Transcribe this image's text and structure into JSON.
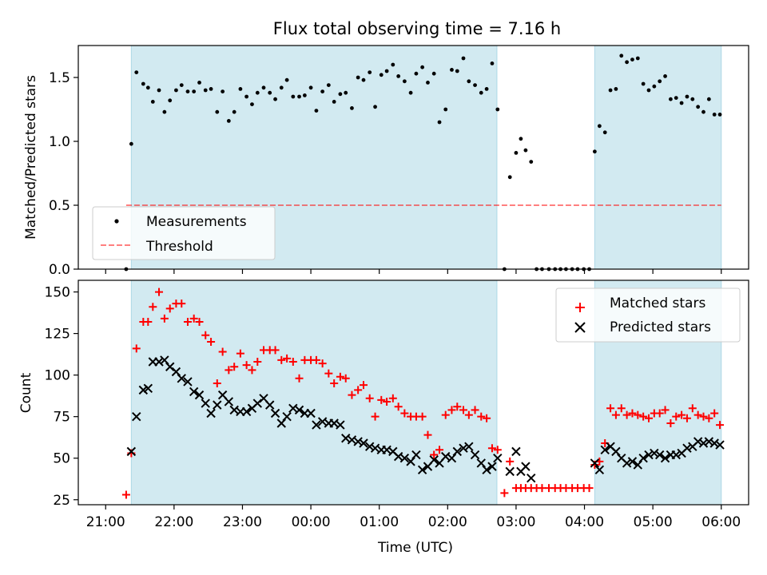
{
  "title": "Flux total observing time = 7.16 h",
  "colors": {
    "span": "#add8e6",
    "matched": "#ff0000",
    "predicted": "#000000",
    "threshold": "#ff0000",
    "measurement": "#000000"
  },
  "chart_data": [
    {
      "type": "scatter",
      "ylabel": "Matched/Predicted stars",
      "xlabel": "",
      "ylim": [
        0,
        1.75
      ],
      "yticks": [
        0.0,
        0.5,
        1.0,
        1.5
      ],
      "x_unit": "hours since 21:00 UTC",
      "xlim": [
        -0.4,
        9.4
      ],
      "grid": false,
      "legend_position": "lower-left",
      "shaded_spans": [
        [
          0.375,
          5.72
        ],
        [
          7.15,
          9.0
        ]
      ],
      "threshold": {
        "name": "Threshold",
        "value": 0.5,
        "x": [
          0.3,
          9.0
        ]
      },
      "series": [
        {
          "name": "Measurements",
          "x": [
            0.3,
            0.375,
            0.45,
            0.55,
            0.62,
            0.69,
            0.78,
            0.86,
            0.94,
            1.03,
            1.11,
            1.2,
            1.29,
            1.37,
            1.46,
            1.54,
            1.63,
            1.71,
            1.8,
            1.88,
            1.97,
            2.06,
            2.14,
            2.22,
            2.31,
            2.4,
            2.48,
            2.57,
            2.65,
            2.74,
            2.83,
            2.91,
            3.0,
            3.08,
            3.17,
            3.26,
            3.34,
            3.43,
            3.51,
            3.6,
            3.69,
            3.77,
            3.86,
            3.94,
            4.03,
            4.11,
            4.2,
            4.28,
            4.37,
            4.46,
            4.54,
            4.63,
            4.71,
            4.8,
            4.88,
            4.97,
            5.06,
            5.14,
            5.23,
            5.31,
            5.4,
            5.49,
            5.57,
            5.65,
            5.73,
            5.83,
            5.91,
            6.0,
            6.07,
            6.14,
            6.22,
            6.3,
            6.38,
            6.48,
            6.57,
            6.65,
            6.73,
            6.82,
            6.9,
            6.99,
            7.07,
            7.15,
            7.22,
            7.3,
            7.38,
            7.46,
            7.54,
            7.62,
            7.7,
            7.78,
            7.86,
            7.94,
            8.02,
            8.1,
            8.18,
            8.26,
            8.34,
            8.42,
            8.5,
            8.58,
            8.66,
            8.74,
            8.82,
            8.9,
            8.98
          ],
          "y": [
            0.0,
            0.98,
            1.54,
            1.45,
            1.42,
            1.31,
            1.4,
            1.23,
            1.32,
            1.4,
            1.44,
            1.39,
            1.39,
            1.46,
            1.4,
            1.41,
            1.23,
            1.39,
            1.16,
            1.23,
            1.41,
            1.35,
            1.29,
            1.38,
            1.42,
            1.38,
            1.33,
            1.42,
            1.48,
            1.35,
            1.35,
            1.36,
            1.42,
            1.24,
            1.39,
            1.44,
            1.31,
            1.37,
            1.38,
            1.26,
            1.5,
            1.48,
            1.54,
            1.27,
            1.52,
            1.55,
            1.6,
            1.51,
            1.47,
            1.38,
            1.53,
            1.58,
            1.46,
            1.53,
            1.15,
            1.25,
            1.56,
            1.55,
            1.65,
            1.47,
            1.44,
            1.38,
            1.41,
            1.61,
            1.25,
            0.0,
            0.72,
            0.91,
            1.02,
            0.93,
            0.84,
            0.0,
            0.0,
            0.0,
            0.0,
            0.0,
            0.0,
            0.0,
            0.0,
            0.0,
            0.0,
            0.92,
            1.12,
            1.07,
            1.4,
            1.41,
            1.67,
            1.62,
            1.64,
            1.65,
            1.45,
            1.4,
            1.43,
            1.47,
            1.51,
            1.33,
            1.34,
            1.3,
            1.35,
            1.33,
            1.27,
            1.23,
            1.33,
            1.21,
            1.21
          ]
        }
      ]
    },
    {
      "type": "scatter",
      "ylabel": "Count",
      "xlabel": "Time (UTC)",
      "ylim": [
        22,
        157
      ],
      "yticks": [
        25,
        50,
        75,
        100,
        125,
        150
      ],
      "x_unit": "hours since 21:00 UTC",
      "xlim": [
        -0.4,
        9.4
      ],
      "xticks": [
        0,
        1,
        2,
        3,
        4,
        5,
        6,
        7,
        8,
        9
      ],
      "xtick_labels": [
        "21:00",
        "22:00",
        "23:00",
        "00:00",
        "01:00",
        "02:00",
        "03:00",
        "04:00",
        "05:00",
        "06:00"
      ],
      "grid": false,
      "legend_position": "top-right",
      "shaded_spans": [
        [
          0.375,
          5.72
        ],
        [
          7.15,
          9.0
        ]
      ],
      "series": [
        {
          "name": "Matched stars",
          "marker": "plus",
          "x": [
            0.3,
            0.375,
            0.45,
            0.55,
            0.62,
            0.69,
            0.78,
            0.86,
            0.94,
            1.03,
            1.11,
            1.2,
            1.29,
            1.37,
            1.46,
            1.54,
            1.63,
            1.71,
            1.8,
            1.88,
            1.97,
            2.06,
            2.14,
            2.22,
            2.31,
            2.4,
            2.48,
            2.57,
            2.65,
            2.74,
            2.83,
            2.91,
            3.0,
            3.08,
            3.17,
            3.26,
            3.34,
            3.43,
            3.51,
            3.6,
            3.69,
            3.77,
            3.86,
            3.94,
            4.03,
            4.11,
            4.2,
            4.28,
            4.37,
            4.46,
            4.54,
            4.63,
            4.71,
            4.8,
            4.88,
            4.97,
            5.06,
            5.14,
            5.23,
            5.31,
            5.4,
            5.49,
            5.57,
            5.65,
            5.73,
            5.83,
            5.91,
            6.0,
            6.07,
            6.14,
            6.22,
            6.3,
            6.38,
            6.48,
            6.57,
            6.65,
            6.73,
            6.82,
            6.9,
            6.99,
            7.07,
            7.15,
            7.22,
            7.3,
            7.38,
            7.46,
            7.54,
            7.62,
            7.7,
            7.78,
            7.86,
            7.94,
            8.02,
            8.1,
            8.18,
            8.26,
            8.34,
            8.42,
            8.5,
            8.58,
            8.66,
            8.74,
            8.82,
            8.9,
            8.98
          ],
          "y": [
            28,
            53,
            116,
            132,
            132,
            141,
            150,
            134,
            140,
            143,
            143,
            132,
            134,
            132,
            124,
            120,
            95,
            114,
            103,
            105,
            113,
            106,
            103,
            108,
            115,
            115,
            115,
            109,
            110,
            108,
            98,
            109,
            109,
            109,
            107,
            101,
            95,
            99,
            98,
            88,
            91,
            94,
            86,
            75,
            85,
            84,
            86,
            81,
            77,
            75,
            75,
            75,
            64,
            52,
            55,
            76,
            79,
            81,
            79,
            76,
            79,
            75,
            74,
            56,
            55,
            29,
            48,
            32,
            32,
            32,
            32,
            32,
            32,
            32,
            32,
            32,
            32,
            32,
            32,
            32,
            32,
            46,
            48,
            59,
            80,
            76,
            80,
            76,
            77,
            76,
            75,
            74,
            77,
            77,
            79,
            71,
            75,
            76,
            74,
            80,
            76,
            75,
            74,
            77,
            70
          ]
        },
        {
          "name": "Predicted stars",
          "marker": "x",
          "x": [
            0.375,
            0.45,
            0.55,
            0.62,
            0.69,
            0.78,
            0.86,
            0.94,
            1.03,
            1.11,
            1.2,
            1.29,
            1.37,
            1.46,
            1.54,
            1.63,
            1.71,
            1.8,
            1.88,
            1.97,
            2.06,
            2.14,
            2.22,
            2.31,
            2.4,
            2.48,
            2.57,
            2.65,
            2.74,
            2.83,
            2.91,
            3.0,
            3.08,
            3.17,
            3.26,
            3.34,
            3.43,
            3.51,
            3.6,
            3.69,
            3.77,
            3.86,
            3.94,
            4.03,
            4.11,
            4.2,
            4.28,
            4.37,
            4.46,
            4.54,
            4.63,
            4.71,
            4.8,
            4.88,
            4.97,
            5.06,
            5.14,
            5.23,
            5.31,
            5.4,
            5.49,
            5.57,
            5.65,
            5.73,
            5.91,
            6.0,
            6.07,
            6.14,
            6.22,
            7.15,
            7.22,
            7.3,
            7.38,
            7.46,
            7.54,
            7.62,
            7.7,
            7.78,
            7.86,
            7.94,
            8.02,
            8.1,
            8.18,
            8.26,
            8.34,
            8.42,
            8.5,
            8.58,
            8.66,
            8.74,
            8.82,
            8.9,
            8.98
          ],
          "y": [
            54,
            75,
            91,
            92,
            108,
            108,
            109,
            105,
            102,
            98,
            96,
            90,
            88,
            83,
            77,
            82,
            88,
            84,
            79,
            78,
            78,
            80,
            83,
            86,
            82,
            77,
            71,
            75,
            80,
            79,
            77,
            77,
            70,
            72,
            71,
            71,
            70,
            62,
            61,
            60,
            59,
            57,
            56,
            55,
            55,
            54,
            51,
            50,
            48,
            52,
            43,
            45,
            49,
            47,
            51,
            50,
            54,
            56,
            57,
            52,
            47,
            43,
            45,
            50,
            42,
            54,
            42,
            45,
            38,
            47,
            43,
            55,
            57,
            54,
            50,
            47,
            48,
            46,
            50,
            52,
            53,
            52,
            50,
            52,
            52,
            53,
            56,
            57,
            60,
            59,
            60,
            59,
            58
          ]
        }
      ]
    }
  ]
}
